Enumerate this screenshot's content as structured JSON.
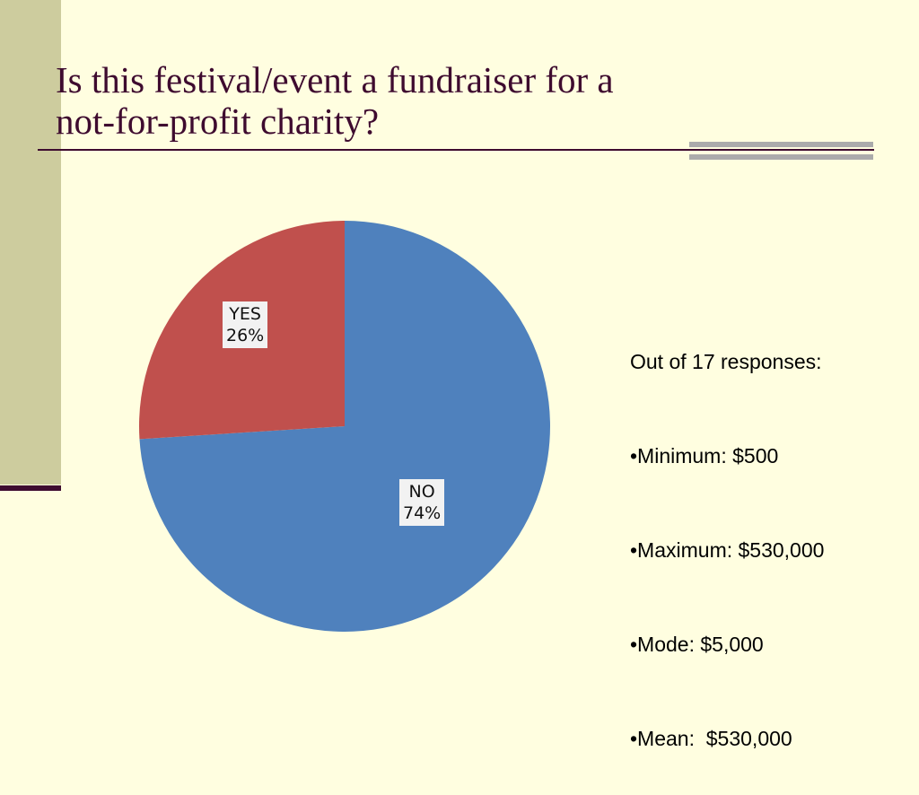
{
  "slide": {
    "title_line1": "Is this festival/event a fundraiser for a",
    "title_line2": "not-for-profit charity?",
    "colors": {
      "background": "#FFFEE0",
      "title": "#3E0B2F",
      "left_bar": "#CDCC9E",
      "rule_accent": "#ABABAB"
    }
  },
  "chart_data": {
    "type": "pie",
    "slices": [
      {
        "label": "NO",
        "value": 74,
        "display": "74%",
        "color": "#4F81BD"
      },
      {
        "label": "YES",
        "value": 26,
        "display": "26%",
        "color": "#C0504D"
      }
    ],
    "start_angle_deg": 0,
    "direction": "clockwise",
    "legend": "none"
  },
  "stats": {
    "heading": "Out of 17 responses:",
    "items": [
      "•Minimum: $500",
      "•Maximum: $530,000",
      "•Mode: $5,000",
      "•Mean:  $530,000"
    ]
  }
}
